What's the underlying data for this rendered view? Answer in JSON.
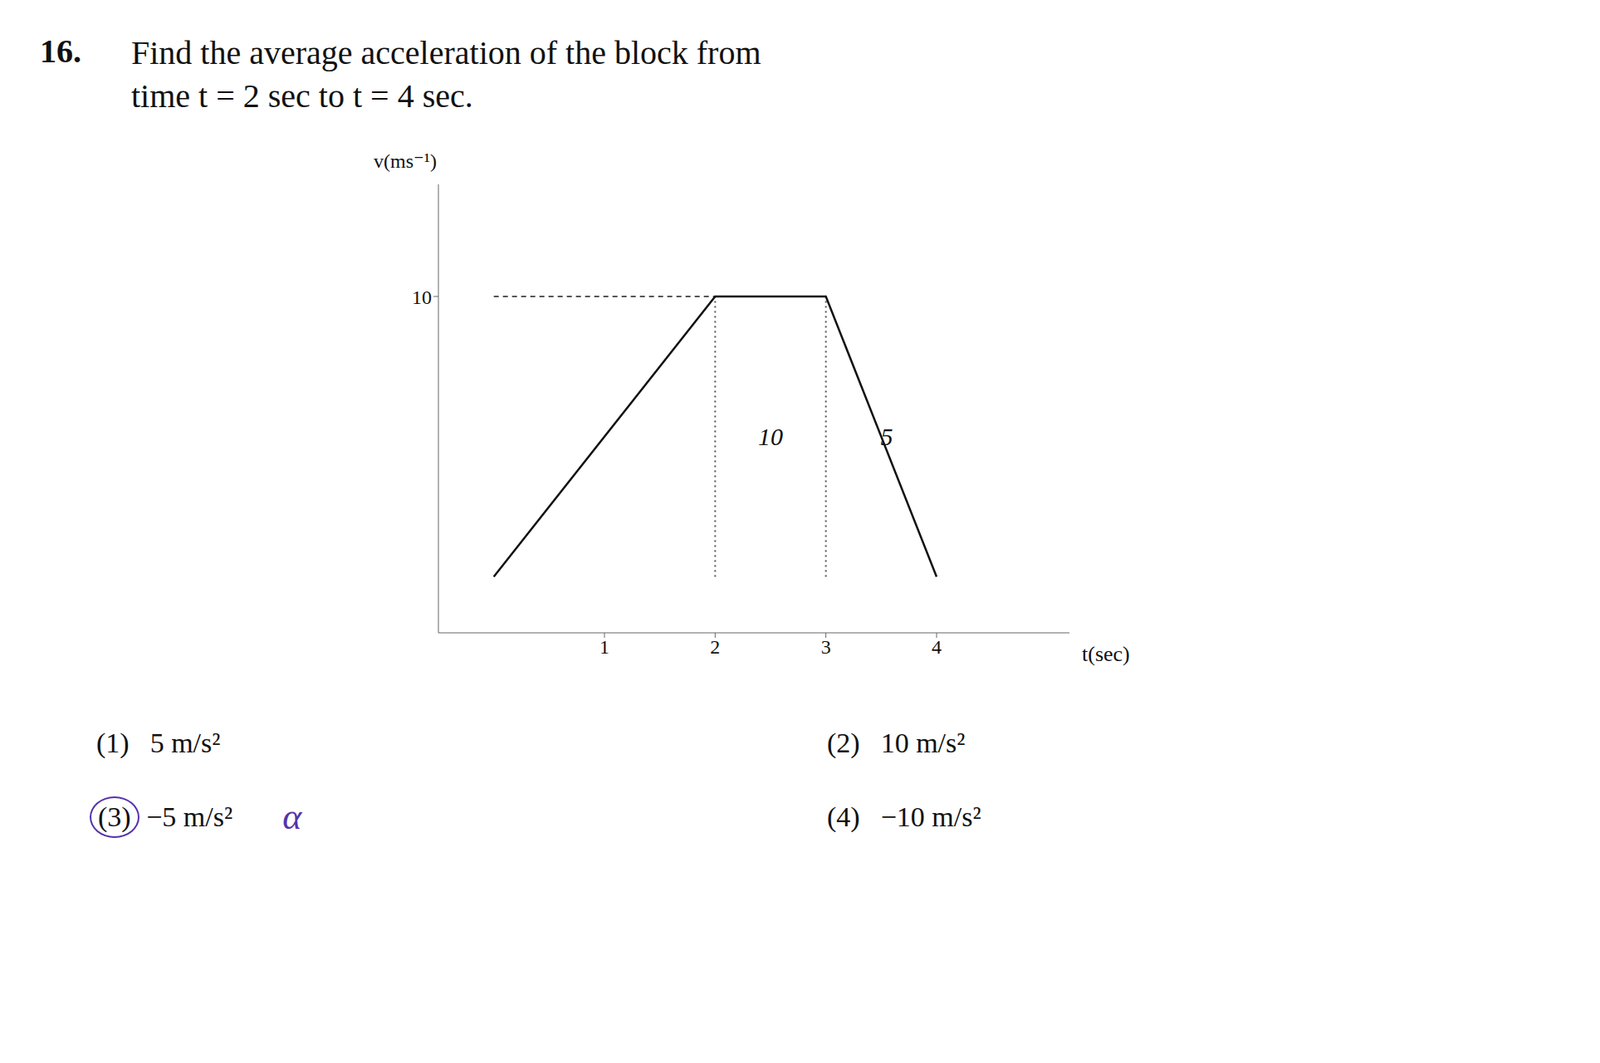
{
  "chart_data": {
    "type": "line",
    "title": "16.",
    "subtitle": "Find the average acceleration of the block from\ntime t = 2 sec to t = 4 sec.",
    "xlabel": "t(sec)",
    "ylabel": "v(ms⁻¹)",
    "x": [
      0,
      2,
      3,
      4
    ],
    "values": [
      0,
      10,
      10,
      0
    ],
    "color": "#111111",
    "xlim": [
      -0.5,
      5.2
    ],
    "ylim": [
      -2.0,
      14.0
    ],
    "xticks": [
      1,
      2,
      3,
      4
    ],
    "yticks": [
      10
    ],
    "grid": false,
    "marker": "none",
    "line_style": "solid",
    "annotations": [
      {
        "text": "10",
        "x": 2.5,
        "y": 5.0
      },
      {
        "text": "5",
        "x": 3.55,
        "y": 5.0
      }
    ],
    "options": [
      "(1)  5 m/s²",
      "(2)  10 m/s²",
      "(3) −5 m/s²",
      "(4)  −10 m/s²"
    ],
    "note": "α"
  }
}
